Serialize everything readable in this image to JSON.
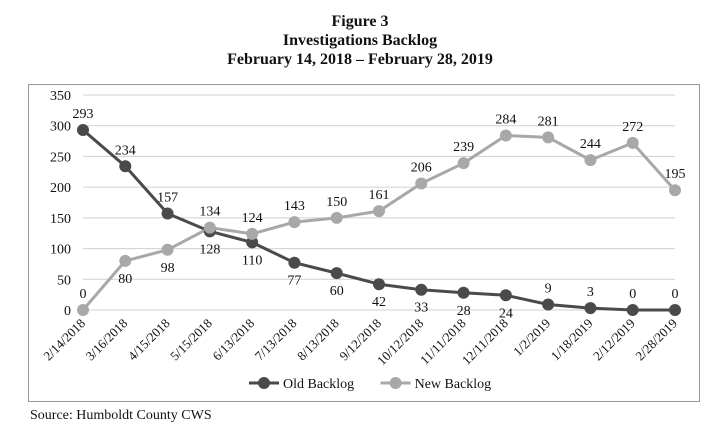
{
  "figure": {
    "line1": "Figure 3",
    "line2": "Investigations Backlog",
    "line3": "February 14, 2018 – February 28, 2019"
  },
  "source": "Source: Humboldt County CWS",
  "chart_data": {
    "type": "line",
    "categories": [
      "2/14/2018",
      "3/16/2018",
      "4/15/2018",
      "5/15/2018",
      "6/13/2018",
      "7/13/2018",
      "8/13/2018",
      "9/12/2018",
      "10/12/2018",
      "11/11/2018",
      "12/11/2018",
      "1/2/2019",
      "1/18/2019",
      "2/12/2019",
      "2/28/2019"
    ],
    "series": [
      {
        "name": "Old Backlog",
        "color": "#4a4a4a",
        "values": [
          293,
          234,
          157,
          128,
          110,
          77,
          60,
          42,
          33,
          28,
          24,
          9,
          3,
          0,
          0
        ]
      },
      {
        "name": "New Backlog",
        "color": "#a8a8a8",
        "values": [
          0,
          80,
          98,
          134,
          124,
          143,
          150,
          161,
          206,
          239,
          284,
          281,
          244,
          272,
          195
        ]
      }
    ],
    "ylim": [
      0,
      350
    ],
    "yticks": [
      0,
      50,
      100,
      150,
      200,
      250,
      300,
      350
    ],
    "grid": true,
    "legend_position": "bottom"
  }
}
